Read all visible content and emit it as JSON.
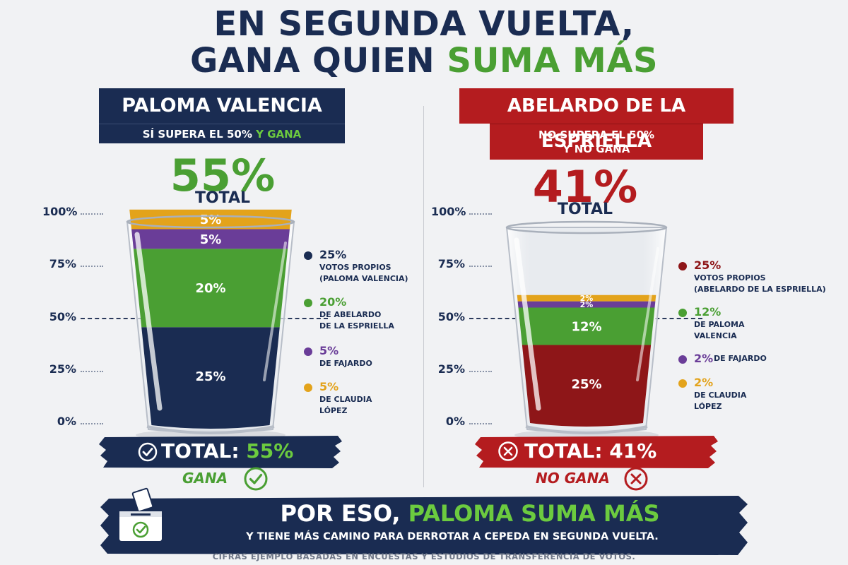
{
  "title": {
    "line1": "EN SEGUNDA VUELTA,",
    "line2_prefix": "GANA QUIEN",
    "line2_highlight": "SUMA MÁS"
  },
  "colors": {
    "navy": "#1a2c52",
    "green": "#4a9f33",
    "purple": "#6a3d98",
    "yellow": "#e3a31b",
    "red": "#b41c1f",
    "maroon": "#8e1618"
  },
  "left": {
    "name": "PALOMA VALENCIA",
    "subtitle_prefix": "SÍ SUPERA EL 50%",
    "subtitle_highlight": "Y GANA",
    "total_pct": "55%",
    "total_label": "TOTAL",
    "ribbon_prefix": "TOTAL:",
    "ribbon_value": "55%",
    "verdict": "GANA",
    "legend": [
      {
        "value": "25%",
        "lines": [
          "VOTOS PROPIOS",
          "(PALOMA VALENCIA)"
        ],
        "color": "#1a2c52"
      },
      {
        "value": "20%",
        "lines": [
          "DE ABELARDO",
          "DE LA ESPRIELLA"
        ],
        "color": "#4a9f33"
      },
      {
        "value": "5%",
        "lines": [
          "DE FAJARDO"
        ],
        "color": "#6a3d98"
      },
      {
        "value": "5%",
        "lines": [
          "DE CLAUDIA",
          "LÓPEZ"
        ],
        "color": "#e3a31b"
      }
    ]
  },
  "right": {
    "name": "ABELARDO DE LA ESPRIELLA",
    "subtitle_line1": "NO SUPERA EL 50%",
    "subtitle_line2": "Y NO GANA",
    "total_pct": "41%",
    "total_label": "TOTAL",
    "ribbon_prefix": "TOTAL:",
    "ribbon_value": "41%",
    "verdict": "NO GANA",
    "legend": [
      {
        "value": "25%",
        "lines": [
          "VOTOS PROPIOS",
          "(ABELARDO DE LA ESPRIELLA)"
        ],
        "color": "#8e1618"
      },
      {
        "value": "12%",
        "lines": [
          "DE PALOMA",
          "VALENCIA"
        ],
        "color": "#4a9f33"
      },
      {
        "value": "2%",
        "lines": [
          "DE FAJARDO"
        ],
        "color": "#6a3d98",
        "inline": true
      },
      {
        "value": "2%",
        "lines": [
          "DE CLAUDIA",
          "LÓPEZ"
        ],
        "color": "#e3a31b"
      }
    ]
  },
  "chart_data": [
    {
      "type": "bar",
      "stacked": true,
      "ylim": [
        0,
        100
      ],
      "yticks": [
        "0%",
        "25%",
        "50%",
        "75%",
        "100%"
      ],
      "threshold": 50,
      "categories": [
        "PALOMA VALENCIA"
      ],
      "series": [
        {
          "name": "VOTOS PROPIOS (PALOMA VALENCIA)",
          "values": [
            25
          ],
          "label": "25%",
          "color": "#1a2c52"
        },
        {
          "name": "DE ABELARDO DE LA ESPRIELLA",
          "values": [
            20
          ],
          "label": "20%",
          "color": "#4a9f33"
        },
        {
          "name": "DE FAJARDO",
          "values": [
            5
          ],
          "label": "5%",
          "color": "#6a3d98"
        },
        {
          "name": "DE CLAUDIA LÓPEZ",
          "values": [
            5
          ],
          "label": "5%",
          "color": "#e3a31b"
        }
      ]
    },
    {
      "type": "bar",
      "stacked": true,
      "ylim": [
        0,
        100
      ],
      "yticks": [
        "0%",
        "25%",
        "50%",
        "75%",
        "100%"
      ],
      "threshold": 50,
      "categories": [
        "ABELARDO DE LA ESPRIELLA"
      ],
      "series": [
        {
          "name": "VOTOS PROPIOS (ABELARDO DE LA ESPRIELLA)",
          "values": [
            25
          ],
          "label": "25%",
          "color": "#8e1618"
        },
        {
          "name": "DE PALOMA VALENCIA",
          "values": [
            12
          ],
          "label": "12%",
          "color": "#4a9f33"
        },
        {
          "name": "DE FAJARDO",
          "values": [
            2
          ],
          "label": "2%",
          "color": "#6a3d98"
        },
        {
          "name": "DE CLAUDIA LÓPEZ",
          "values": [
            2
          ],
          "label": "2%",
          "color": "#e3a31b"
        }
      ]
    }
  ],
  "footer": {
    "main_prefix": "POR ESO,",
    "main_highlight": "PALOMA SUMA MÁS",
    "sub": "Y TIENE MÁS CAMINO PARA DERROTAR A CEPEDA EN SEGUNDA VUELTA.",
    "note": "CIFRAS EJEMPLO BASADAS EN ENCUESTAS Y ESTUDIOS DE TRANSFERENCIA DE VOTOS."
  },
  "icons": [
    "check-circle-icon",
    "x-circle-icon",
    "ballot-box-icon"
  ]
}
